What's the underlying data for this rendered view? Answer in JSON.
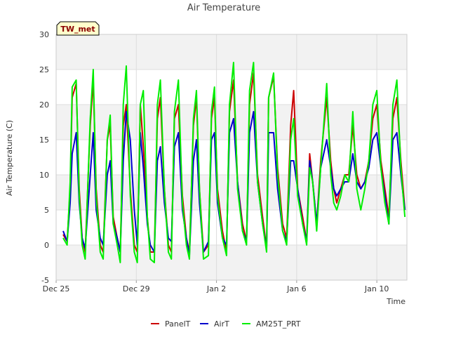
{
  "chart_data": {
    "type": "line",
    "title": "Air Temperature",
    "xlabel": "Time",
    "ylabel": "Air Temperature (C)",
    "badge": "TW_met",
    "ylim": [
      -5,
      30
    ],
    "yticks": [
      -5,
      0,
      5,
      10,
      15,
      20,
      25,
      30
    ],
    "xlim": [
      0,
      17.5
    ],
    "xticks": [
      {
        "value": 0,
        "label": "Dec 25"
      },
      {
        "value": 4,
        "label": "Dec 29"
      },
      {
        "value": 8,
        "label": "Jan 2"
      },
      {
        "value": 12,
        "label": "Jan 6"
      },
      {
        "value": 16,
        "label": "Jan 10"
      }
    ],
    "bands": [
      [
        -5,
        0
      ],
      [
        5,
        10
      ],
      [
        15,
        20
      ],
      [
        25,
        30
      ]
    ],
    "grid": true,
    "legend_position": "bottom",
    "series": [
      {
        "name": "PanelT",
        "color": "#cc0000",
        "x": [
          0.35,
          0.55,
          0.7,
          0.8,
          1.0,
          1.15,
          1.3,
          1.45,
          1.7,
          1.85,
          2.0,
          2.2,
          2.35,
          2.55,
          2.7,
          2.85,
          3.05,
          3.2,
          3.35,
          3.5,
          3.7,
          3.9,
          4.05,
          4.2,
          4.35,
          4.55,
          4.7,
          4.9,
          5.05,
          5.2,
          5.4,
          5.6,
          5.75,
          5.9,
          6.1,
          6.3,
          6.5,
          6.65,
          6.85,
          7.0,
          7.15,
          7.35,
          7.6,
          7.75,
          7.9,
          8.05,
          8.3,
          8.5,
          8.65,
          8.85,
          9.05,
          9.3,
          9.5,
          9.65,
          9.85,
          10.05,
          10.3,
          10.5,
          10.6,
          10.85,
          11.05,
          11.3,
          11.5,
          11.7,
          11.85,
          12.05,
          12.3,
          12.5,
          12.65,
          12.8,
          13.0,
          13.2,
          13.5,
          13.7,
          13.85,
          14.0,
          14.2,
          14.4,
          14.6,
          14.8,
          15.0,
          15.2,
          15.4,
          15.6,
          15.8,
          16.0,
          16.2,
          16.4,
          16.6,
          16.8,
          17.0,
          17.2,
          17.4
        ],
        "values": [
          1.5,
          0.5,
          8,
          21,
          23,
          8,
          1,
          -1,
          17,
          23.5,
          8,
          0,
          -1,
          15,
          17,
          4,
          1,
          -1,
          17,
          20,
          8,
          0,
          -1,
          20,
          14,
          4,
          -1,
          -1,
          18,
          21,
          8,
          0,
          -1,
          18,
          20,
          7,
          1,
          -1,
          17,
          21,
          8,
          -1,
          0,
          18,
          21,
          8,
          2,
          -1,
          19,
          23.5,
          9,
          3,
          0.5,
          20,
          24.5,
          10,
          4,
          -0.5,
          21,
          24,
          11,
          3,
          1,
          17,
          22,
          8,
          4,
          0.5,
          13,
          9,
          3,
          12,
          21,
          12,
          8,
          6,
          8,
          10,
          10,
          17,
          10,
          8,
          9,
          12,
          18,
          20,
          12,
          8,
          4,
          18,
          21,
          12,
          5
        ]
      },
      {
        "name": "AirT",
        "color": "#0000cc",
        "x": [
          0.35,
          0.55,
          0.7,
          0.8,
          1.0,
          1.15,
          1.3,
          1.45,
          1.7,
          1.85,
          2.0,
          2.2,
          2.35,
          2.55,
          2.7,
          2.85,
          3.05,
          3.2,
          3.35,
          3.5,
          3.7,
          3.9,
          4.05,
          4.2,
          4.35,
          4.55,
          4.7,
          4.9,
          5.05,
          5.2,
          5.4,
          5.6,
          5.75,
          5.9,
          6.1,
          6.3,
          6.5,
          6.65,
          6.85,
          7.0,
          7.15,
          7.35,
          7.6,
          7.75,
          7.9,
          8.05,
          8.3,
          8.5,
          8.65,
          8.85,
          9.05,
          9.3,
          9.5,
          9.65,
          9.85,
          10.05,
          10.3,
          10.5,
          10.6,
          10.85,
          11.05,
          11.3,
          11.5,
          11.7,
          11.85,
          12.05,
          12.3,
          12.5,
          12.65,
          12.8,
          13.0,
          13.2,
          13.5,
          13.7,
          13.85,
          14.0,
          14.2,
          14.4,
          14.6,
          14.8,
          15.0,
          15.2,
          15.4,
          15.6,
          15.8,
          16.0,
          16.2,
          16.4,
          16.6,
          16.8,
          17.0,
          17.2,
          17.4
        ],
        "values": [
          2,
          0.5,
          6,
          13,
          16,
          6,
          1,
          -0.5,
          10,
          16,
          5,
          1,
          0,
          10,
          12,
          3,
          1,
          -1,
          12,
          19,
          15,
          5,
          0,
          16,
          11,
          3,
          0,
          -1,
          12,
          14,
          6,
          1,
          0.5,
          14,
          16,
          5,
          1,
          -1.5,
          12,
          15,
          6,
          -1,
          0.5,
          15,
          16,
          6,
          1,
          0,
          16,
          18,
          9,
          2,
          0.5,
          16,
          19,
          9,
          3,
          -0.5,
          16,
          16,
          8,
          2,
          0.5,
          12,
          12,
          8,
          3,
          0.5,
          12,
          9,
          3,
          11,
          15,
          11,
          8,
          7,
          8,
          9,
          9,
          13,
          9,
          8,
          9,
          11,
          15,
          16,
          11,
          7,
          3,
          15,
          16,
          10,
          5
        ]
      },
      {
        "name": "AM25T_PRT",
        "color": "#00ee00",
        "x": [
          0.35,
          0.55,
          0.7,
          0.8,
          1.0,
          1.15,
          1.3,
          1.45,
          1.7,
          1.85,
          2.0,
          2.2,
          2.35,
          2.55,
          2.7,
          2.85,
          3.05,
          3.2,
          3.35,
          3.5,
          3.7,
          3.9,
          4.05,
          4.2,
          4.35,
          4.55,
          4.7,
          4.9,
          5.05,
          5.2,
          5.4,
          5.6,
          5.75,
          5.9,
          6.1,
          6.3,
          6.5,
          6.65,
          6.85,
          7.0,
          7.15,
          7.35,
          7.6,
          7.75,
          7.9,
          8.05,
          8.3,
          8.5,
          8.65,
          8.85,
          9.05,
          9.3,
          9.5,
          9.65,
          9.85,
          10.05,
          10.3,
          10.5,
          10.6,
          10.85,
          11.05,
          11.3,
          11.5,
          11.7,
          11.85,
          12.05,
          12.3,
          12.5,
          12.65,
          12.8,
          13.0,
          13.2,
          13.5,
          13.7,
          13.85,
          14.0,
          14.2,
          14.4,
          14.6,
          14.8,
          15.0,
          15.2,
          15.4,
          15.6,
          15.8,
          16.0,
          16.2,
          16.4,
          16.6,
          16.8,
          17.0,
          17.2,
          17.4
        ],
        "values": [
          1,
          0,
          9,
          22.5,
          23.5,
          7,
          0,
          -2,
          18,
          25,
          7,
          -1,
          -2,
          15,
          18.5,
          3,
          0,
          -2.5,
          20,
          25.5,
          7,
          -1,
          -2.5,
          20,
          22,
          4,
          -2,
          -2.5,
          20,
          23.5,
          8,
          -1,
          -2,
          19,
          23.5,
          6,
          0,
          -2,
          18,
          22,
          8,
          -2,
          -1.5,
          19,
          22.5,
          7,
          1,
          -1.5,
          20,
          26,
          8,
          2,
          0,
          22,
          26,
          9,
          3,
          -1,
          21,
          24.5,
          10,
          2,
          0,
          15,
          18,
          7,
          3,
          0,
          11,
          9,
          2,
          11,
          23,
          10,
          6,
          5,
          7,
          10,
          9,
          19,
          8,
          5,
          8,
          12,
          20,
          22,
          11,
          6,
          3,
          20,
          23.5,
          11,
          4
        ]
      }
    ]
  }
}
